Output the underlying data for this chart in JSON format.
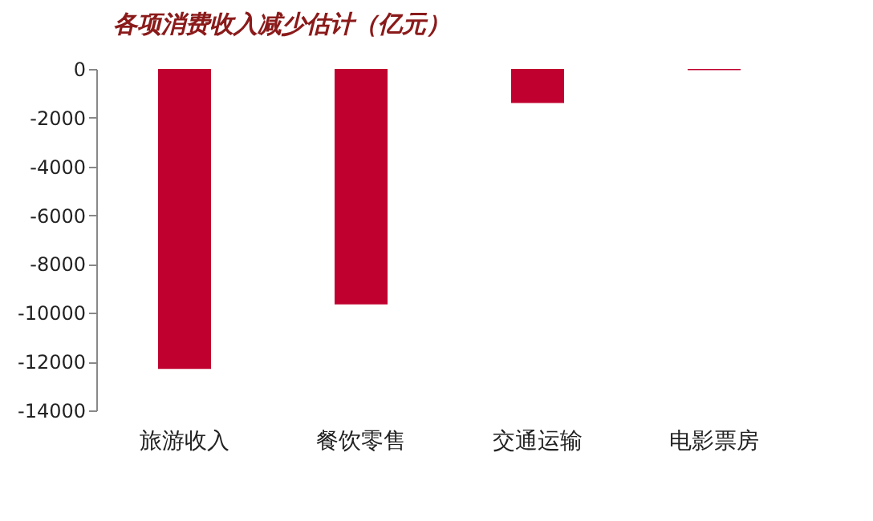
{
  "chart_data": {
    "type": "bar",
    "title": "各项消费收入减少估计（亿元）",
    "categories": [
      "旅游收入",
      "餐饮零售",
      "交通运输",
      "电影票房"
    ],
    "values": [
      -12300,
      -9650,
      -1400,
      -50
    ],
    "color": "#c0002f",
    "ylim": [
      -14000,
      0
    ],
    "yticks": [
      -14000,
      -12000,
      -10000,
      -8000,
      -6000,
      -4000,
      -2000,
      0
    ]
  }
}
